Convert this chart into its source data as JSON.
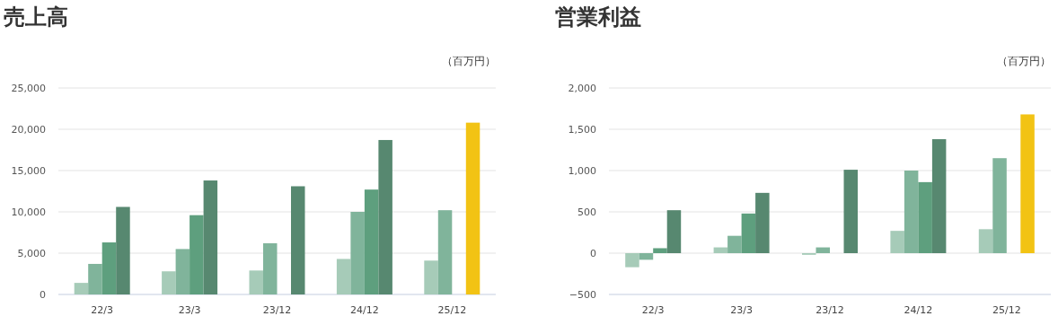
{
  "chart_data": [
    {
      "type": "bar",
      "title": "売上高",
      "ylabel": "（百万円）",
      "categories": [
        "22/3",
        "23/3",
        "23/12",
        "24/12",
        "25/12"
      ],
      "series": [
        {
          "color": "#a6cbb8",
          "values": [
            1400,
            2800,
            2900,
            4300,
            4100
          ]
        },
        {
          "color": "#80b49b",
          "values": [
            3700,
            5500,
            6200,
            10000,
            10200
          ]
        },
        {
          "color": "#5e9f7e",
          "values": [
            6300,
            9600,
            null,
            12700,
            null
          ]
        },
        {
          "colors": [
            "#578870",
            "#578870",
            "#578870",
            "#578870",
            "#f2c314"
          ],
          "values": [
            10600,
            13800,
            13100,
            18700,
            20800
          ]
        }
      ],
      "ylim": [
        0,
        25000
      ],
      "yticks": [
        {
          "value": 0,
          "label": "0"
        },
        {
          "value": 5000,
          "label": "5,000"
        },
        {
          "value": 10000,
          "label": "10,000"
        },
        {
          "value": 15000,
          "label": "15,000"
        },
        {
          "value": 20000,
          "label": "20,000"
        },
        {
          "value": 25000,
          "label": "25,000"
        }
      ],
      "grid": "y"
    },
    {
      "type": "bar",
      "title": "営業利益",
      "ylabel": "（百万円）",
      "categories": [
        "22/3",
        "23/3",
        "23/12",
        "24/12",
        "25/12"
      ],
      "series": [
        {
          "color": "#a6cbb8",
          "values": [
            -170,
            70,
            -20,
            270,
            290
          ]
        },
        {
          "color": "#80b49b",
          "values": [
            -80,
            210,
            70,
            1000,
            1150
          ]
        },
        {
          "color": "#5e9f7e",
          "values": [
            60,
            480,
            null,
            860,
            null
          ]
        },
        {
          "colors": [
            "#578870",
            "#578870",
            "#578870",
            "#578870",
            "#f2c314"
          ],
          "values": [
            520,
            730,
            1010,
            1380,
            1680
          ]
        }
      ],
      "ylim": [
        -500,
        2000
      ],
      "yticks": [
        {
          "value": -500,
          "label": "−500"
        },
        {
          "value": 0,
          "label": "0"
        },
        {
          "value": 500,
          "label": "500"
        },
        {
          "value": 1000,
          "label": "1,000"
        },
        {
          "value": 1500,
          "label": "1,500"
        },
        {
          "value": 2000,
          "label": "2,000"
        }
      ],
      "grid": "y"
    }
  ]
}
